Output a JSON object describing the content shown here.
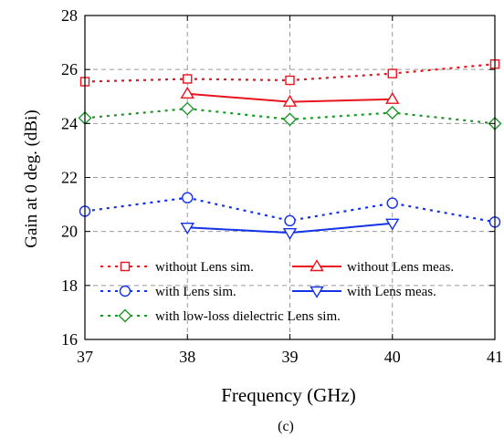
{
  "chart_data": {
    "type": "line",
    "title": "",
    "xlabel": "Frequency (GHz)",
    "ylabel": "Gain at 0 deg. (dBi)",
    "caption": "(c)",
    "xlim": [
      37,
      41
    ],
    "ylim": [
      16,
      28
    ],
    "xticks": [
      37,
      38,
      39,
      40,
      41
    ],
    "yticks": [
      16,
      18,
      20,
      22,
      24,
      26,
      28
    ],
    "grid": true,
    "legend_position": "inside-bottom",
    "series": [
      {
        "name": "without Lens sim.",
        "color": "#e8141e",
        "dash": "dotted",
        "marker": "square",
        "x": [
          37,
          38,
          39,
          40,
          41
        ],
        "y": [
          25.55,
          25.65,
          25.6,
          25.85,
          26.2
        ]
      },
      {
        "name": "without Lens meas.",
        "color": "#e8141e",
        "dash": "solid",
        "marker": "triangle-up",
        "x": [
          38,
          39,
          40
        ],
        "y": [
          25.1,
          24.8,
          24.9
        ]
      },
      {
        "name": "with Lens sim.",
        "color": "#1432e6",
        "dash": "dotted",
        "marker": "circle",
        "x": [
          37,
          38,
          39,
          40,
          41
        ],
        "y": [
          20.75,
          21.25,
          20.4,
          21.05,
          20.35
        ]
      },
      {
        "name": "with Lens meas.",
        "color": "#1432e6",
        "dash": "solid",
        "marker": "triangle-down",
        "x": [
          38,
          39,
          40
        ],
        "y": [
          20.15,
          19.95,
          20.3
        ]
      },
      {
        "name": "with low-loss dielectric Lens sim.",
        "color": "#1e9628",
        "dash": "dotted",
        "marker": "diamond",
        "x": [
          37,
          38,
          39,
          40,
          41
        ],
        "y": [
          24.2,
          24.55,
          24.15,
          24.4,
          24.0
        ]
      }
    ]
  }
}
